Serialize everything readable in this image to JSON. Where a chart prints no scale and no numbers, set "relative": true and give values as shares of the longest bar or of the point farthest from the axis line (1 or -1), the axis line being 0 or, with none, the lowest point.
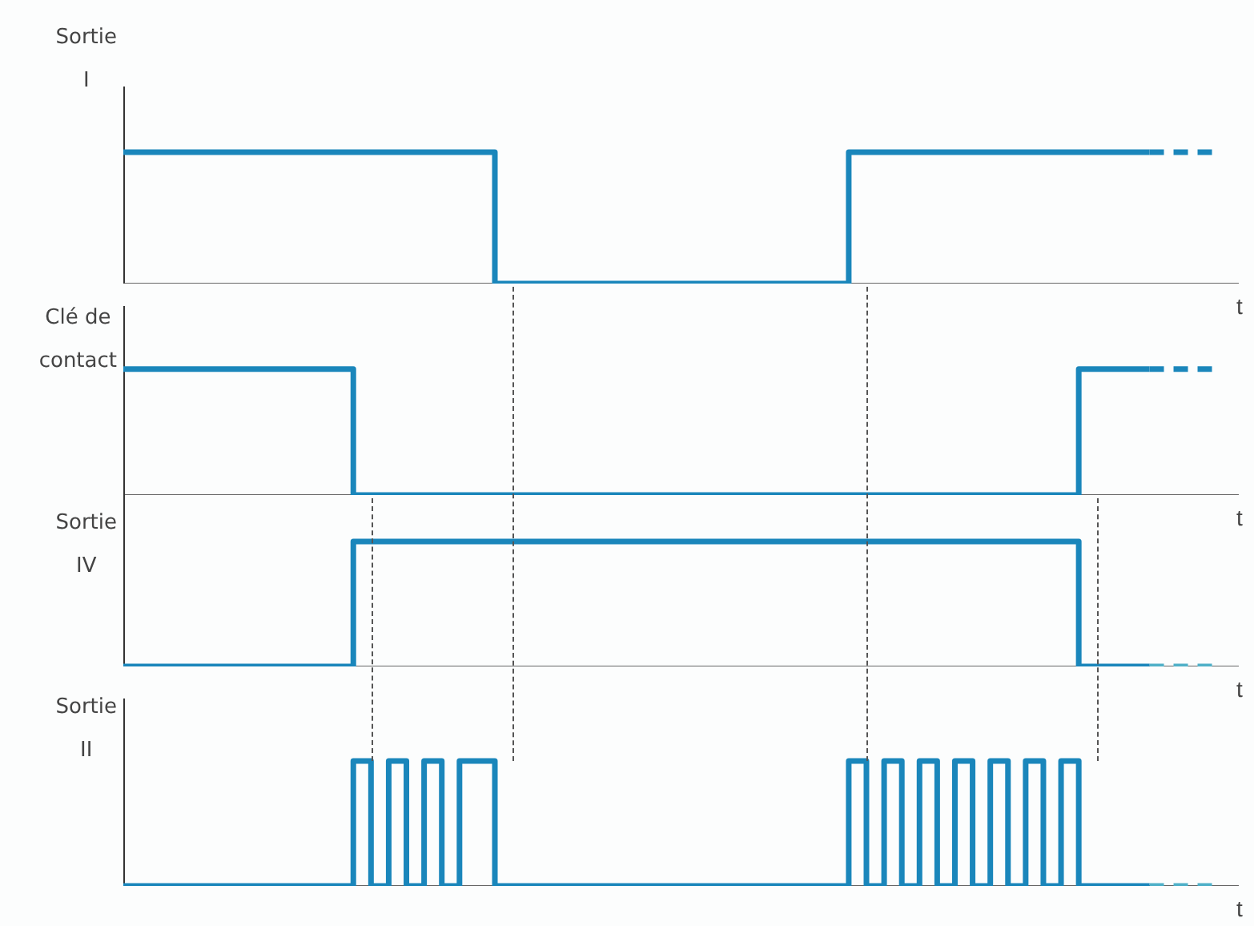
{
  "chart_data": [
    {
      "type": "step",
      "relative": true,
      "ylabel": "Sortie\nI",
      "xlabel": "t",
      "categories": [
        null,
        null,
        null,
        null,
        null,
        null,
        null,
        null,
        null,
        null,
        null,
        null,
        null,
        null,
        null,
        null,
        null,
        null,
        null,
        null,
        null,
        null,
        null,
        null,
        null,
        null,
        null,
        null,
        null,
        null,
        null,
        null,
        null,
        null,
        null,
        null,
        null,
        null,
        null,
        null,
        null,
        null,
        null,
        null,
        null,
        null,
        null,
        null,
        null,
        null,
        null,
        null,
        null,
        null,
        null,
        null,
        null,
        null,
        null,
        null,
        null,
        null,
        null,
        null
      ],
      "series": [
        {
          "color": "#1a86bb",
          "values": [
            1,
            1,
            1,
            1,
            1,
            1,
            1,
            1,
            1,
            1,
            1,
            1,
            1,
            1,
            1,
            1,
            1,
            1,
            1,
            1,
            1,
            1,
            0,
            0,
            0,
            0,
            0,
            0,
            0,
            0,
            0,
            0,
            0,
            0,
            0,
            0,
            0,
            0,
            0,
            0,
            0,
            0,
            1,
            1,
            1,
            1,
            1,
            1,
            1,
            1,
            1,
            1,
            1,
            1,
            1,
            1,
            1,
            1,
            1,
            null,
            null,
            null,
            null,
            null
          ]
        },
        {
          "color": "#1a86bb",
          "line_style": "dashed",
          "values": [
            null,
            null,
            null,
            null,
            null,
            null,
            null,
            null,
            null,
            null,
            null,
            null,
            null,
            null,
            null,
            null,
            null,
            null,
            null,
            null,
            null,
            null,
            null,
            null,
            null,
            null,
            null,
            null,
            null,
            null,
            null,
            null,
            null,
            null,
            null,
            null,
            null,
            null,
            null,
            null,
            null,
            null,
            null,
            null,
            null,
            null,
            null,
            null,
            null,
            null,
            null,
            null,
            null,
            null,
            null,
            null,
            null,
            null,
            1,
            1,
            1,
            1,
            1,
            null
          ]
        }
      ]
    },
    {
      "type": "step",
      "relative": true,
      "ylabel": "Clé de\ncontact",
      "xlabel": "t",
      "categories": [
        null,
        null,
        null,
        null,
        null,
        null,
        null,
        null,
        null,
        null,
        null,
        null,
        null,
        null,
        null,
        null,
        null,
        null,
        null,
        null,
        null,
        null,
        null,
        null,
        null,
        null,
        null,
        null,
        null,
        null,
        null,
        null,
        null,
        null,
        null,
        null,
        null,
        null,
        null,
        null,
        null,
        null,
        null,
        null,
        null,
        null,
        null,
        null,
        null,
        null,
        null,
        null,
        null,
        null,
        null,
        null,
        null,
        null,
        null,
        null,
        null,
        null,
        null,
        null
      ],
      "series": [
        {
          "color": "#1a86bb",
          "values": [
            1,
            1,
            1,
            1,
            1,
            1,
            1,
            1,
            1,
            1,
            1,
            1,
            1,
            1,
            0,
            0,
            0,
            0,
            0,
            0,
            0,
            0,
            0,
            0,
            0,
            0,
            0,
            0,
            0,
            0,
            0,
            0,
            0,
            0,
            0,
            0,
            0,
            0,
            0,
            0,
            0,
            0,
            0,
            0,
            0,
            0,
            0,
            0,
            0,
            0,
            0,
            0,
            0,
            0,
            0,
            1,
            1,
            1,
            1,
            null,
            null,
            null,
            null,
            null
          ]
        },
        {
          "color": "#1a86bb",
          "line_style": "dashed",
          "values": [
            null,
            null,
            null,
            null,
            null,
            null,
            null,
            null,
            null,
            null,
            null,
            null,
            null,
            null,
            null,
            null,
            null,
            null,
            null,
            null,
            null,
            null,
            null,
            null,
            null,
            null,
            null,
            null,
            null,
            null,
            null,
            null,
            null,
            null,
            null,
            null,
            null,
            null,
            null,
            null,
            null,
            null,
            null,
            null,
            null,
            null,
            null,
            null,
            null,
            null,
            null,
            null,
            null,
            null,
            null,
            null,
            null,
            null,
            1,
            1,
            1,
            1,
            1,
            null
          ]
        }
      ]
    },
    {
      "type": "step",
      "relative": true,
      "ylabel": "Sortie\nIV",
      "xlabel": "t",
      "categories": [
        null,
        null,
        null,
        null,
        null,
        null,
        null,
        null,
        null,
        null,
        null,
        null,
        null,
        null,
        null,
        null,
        null,
        null,
        null,
        null,
        null,
        null,
        null,
        null,
        null,
        null,
        null,
        null,
        null,
        null,
        null,
        null,
        null,
        null,
        null,
        null,
        null,
        null,
        null,
        null,
        null,
        null,
        null,
        null,
        null,
        null,
        null,
        null,
        null,
        null,
        null,
        null,
        null,
        null,
        null,
        null,
        null,
        null,
        null,
        null,
        null,
        null,
        null,
        null
      ],
      "series": [
        {
          "color": "#1a86bb",
          "values": [
            0,
            0,
            0,
            0,
            0,
            0,
            0,
            0,
            0,
            0,
            0,
            0,
            0,
            0,
            1,
            1,
            1,
            1,
            1,
            1,
            1,
            1,
            1,
            1,
            1,
            1,
            1,
            1,
            1,
            1,
            1,
            1,
            1,
            1,
            1,
            1,
            1,
            1,
            1,
            1,
            1,
            1,
            1,
            1,
            1,
            1,
            1,
            1,
            1,
            1,
            1,
            1,
            1,
            1,
            1,
            0,
            0,
            0,
            0,
            null,
            null,
            null,
            null,
            null
          ]
        },
        {
          "color": "#4fb0c8",
          "line_style": "dashed",
          "values": [
            null,
            null,
            null,
            null,
            null,
            null,
            null,
            null,
            null,
            null,
            null,
            null,
            null,
            null,
            null,
            null,
            null,
            null,
            null,
            null,
            null,
            null,
            null,
            null,
            null,
            null,
            null,
            null,
            null,
            null,
            null,
            null,
            null,
            null,
            null,
            null,
            null,
            null,
            null,
            null,
            null,
            null,
            null,
            null,
            null,
            null,
            null,
            null,
            null,
            null,
            null,
            null,
            null,
            null,
            null,
            null,
            null,
            null,
            0,
            0,
            0,
            0,
            0,
            null
          ]
        }
      ]
    },
    {
      "type": "step",
      "relative": true,
      "ylabel": "Sortie\nII",
      "xlabel": "t",
      "categories": [
        null,
        null,
        null,
        null,
        null,
        null,
        null,
        null,
        null,
        null,
        null,
        null,
        null,
        null,
        null,
        null,
        null,
        null,
        null,
        null,
        null,
        null,
        null,
        null,
        null,
        null,
        null,
        null,
        null,
        null,
        null,
        null,
        null,
        null,
        null,
        null,
        null,
        null,
        null,
        null,
        null,
        null,
        null,
        null,
        null,
        null,
        null,
        null,
        null,
        null,
        null,
        null,
        null,
        null,
        null,
        null,
        null,
        null,
        null,
        null,
        null,
        null,
        null,
        null
      ],
      "series": [
        {
          "color": "#1a86bb",
          "values": [
            0,
            0,
            0,
            0,
            0,
            0,
            0,
            0,
            0,
            0,
            0,
            0,
            0,
            0,
            1,
            0,
            1,
            0,
            1,
            0,
            1,
            1,
            0,
            0,
            0,
            0,
            0,
            0,
            0,
            0,
            0,
            0,
            0,
            0,
            0,
            0,
            0,
            0,
            0,
            0,
            0,
            0,
            1,
            0,
            1,
            0,
            1,
            0,
            1,
            0,
            1,
            0,
            1,
            0,
            1,
            0,
            0,
            0,
            0,
            null,
            null,
            null,
            null,
            null
          ]
        },
        {
          "color": "#4fb0c8",
          "line_style": "dashed",
          "values": [
            null,
            null,
            null,
            null,
            null,
            null,
            null,
            null,
            null,
            null,
            null,
            null,
            null,
            null,
            null,
            null,
            null,
            null,
            null,
            null,
            null,
            null,
            null,
            null,
            null,
            null,
            null,
            null,
            null,
            null,
            null,
            null,
            null,
            null,
            null,
            null,
            null,
            null,
            null,
            null,
            null,
            null,
            null,
            null,
            null,
            null,
            null,
            null,
            null,
            null,
            null,
            null,
            null,
            null,
            null,
            null,
            null,
            null,
            0,
            0,
            0,
            0,
            0,
            null
          ]
        }
      ]
    }
  ]
}
